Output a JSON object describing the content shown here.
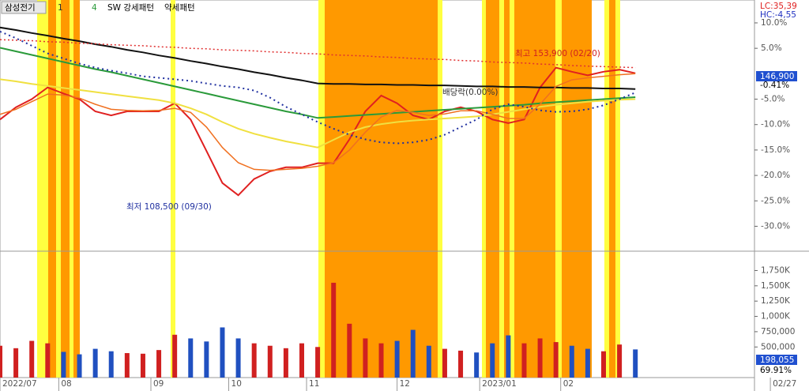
{
  "chart_data": {
    "type": "line",
    "header": {
      "name": "삼성전기",
      "first": "1",
      "second": "4",
      "pattern_up": "SW 강세패턴",
      "pattern_down": "약세패턴"
    },
    "status": {
      "lc": "LC:35,39",
      "hc": "HC:-4,55",
      "price": "146,900",
      "change": "-0.41%",
      "volume": "198,055",
      "volume_ratio": "69.91%"
    },
    "annotations": {
      "high": "최고 153,900 (02/20)",
      "low": "최저 108,500 (09/30)",
      "dividend": "배당락(0.00%)"
    },
    "xlim": [
      0,
      47.5
    ],
    "xticks": [
      {
        "value": 0,
        "label": "2022/07"
      },
      {
        "value": 3.7,
        "label": "08"
      },
      {
        "value": 9.5,
        "label": "09"
      },
      {
        "value": 14.4,
        "label": "10"
      },
      {
        "value": 19.3,
        "label": "11"
      },
      {
        "value": 25,
        "label": "12"
      },
      {
        "value": 30.2,
        "label": "2023/01"
      },
      {
        "value": 35.3,
        "label": "02"
      },
      {
        "value": 48.5,
        "label": "02/27"
      }
    ],
    "ylim": [
      -34.9,
      14.5
    ],
    "yticks": [
      {
        "value": 10,
        "label": "10.0%"
      },
      {
        "value": 5,
        "label": "5.0%"
      },
      {
        "value": -5,
        "label": "-5.0%"
      },
      {
        "value": -10,
        "label": "-10.0%"
      },
      {
        "value": -15,
        "label": "-15.0%"
      },
      {
        "value": -20,
        "label": "-20.0%"
      },
      {
        "value": -25,
        "label": "-25.0%"
      },
      {
        "value": -30,
        "label": "-30.0%"
      }
    ],
    "series": [
      {
        "color": "#e02020",
        "width": 2,
        "values": [
          -9.0,
          -6.6,
          -5.0,
          -2.7,
          -3.9,
          -5.0,
          -7.4,
          -8.2,
          -7.4,
          -7.4,
          -7.4,
          -5.8,
          -9.0,
          -15.2,
          -21.5,
          -23.9,
          -20.7,
          -19.2,
          -18.4,
          -18.4,
          -17.6,
          -17.6,
          -12.9,
          -7.4,
          -4.3,
          -5.8,
          -8.2,
          -9.0,
          -7.4,
          -6.6,
          -7.4,
          -9.0,
          -9.7,
          -9.0,
          -2.7,
          1.2,
          0.4,
          -0.3,
          0.4,
          0.8,
          0.1
        ]
      },
      {
        "color": "#111111",
        "width": 2,
        "values": [
          9.1,
          8.6,
          8.0,
          7.5,
          6.9,
          6.4,
          5.8,
          5.3,
          4.7,
          4.2,
          3.6,
          3.1,
          2.5,
          2.0,
          1.4,
          0.9,
          0.3,
          -0.2,
          -0.8,
          -1.3,
          -1.9,
          -2.0,
          -2.0,
          -2.1,
          -2.1,
          -2.2,
          -2.2,
          -2.3,
          -2.3,
          -2.4,
          -2.5,
          -2.5,
          -2.6,
          -2.6,
          -2.7,
          -2.7,
          -2.8,
          -2.8,
          -2.9,
          -2.9,
          -3.0
        ]
      },
      {
        "color": "#2a9a3a",
        "width": 2,
        "values": [
          5.1,
          4.4,
          3.7,
          3.0,
          2.3,
          1.6,
          0.9,
          0.3,
          -0.4,
          -1.1,
          -1.8,
          -2.5,
          -3.2,
          -3.9,
          -4.6,
          -5.3,
          -6.0,
          -6.7,
          -7.4,
          -8.0,
          -8.7,
          -8.5,
          -8.3,
          -8.1,
          -7.9,
          -7.7,
          -7.5,
          -7.3,
          -7.1,
          -6.9,
          -6.7,
          -6.5,
          -6.3,
          -6.1,
          -5.8,
          -5.6,
          -5.4,
          -5.2,
          -5.0,
          -4.8,
          -4.6
        ]
      },
      {
        "color": "#f0e040",
        "width": 2,
        "values": [
          -1.1,
          -1.5,
          -2.0,
          -2.4,
          -2.8,
          -3.2,
          -3.6,
          -4.0,
          -4.4,
          -4.8,
          -5.2,
          -5.8,
          -6.8,
          -8.0,
          -9.5,
          -10.8,
          -11.8,
          -12.6,
          -13.3,
          -13.9,
          -14.5,
          -13.0,
          -11.5,
          -10.5,
          -9.9,
          -9.5,
          -9.2,
          -9.0,
          -8.8,
          -8.6,
          -8.4,
          -8.0,
          -7.5,
          -7.0,
          -6.5,
          -6.1,
          -5.8,
          -5.5,
          -5.3,
          -5.1,
          -5.0
        ]
      },
      {
        "color": "#f07020",
        "width": 1.5,
        "values": [
          -8.0,
          -7.0,
          -5.5,
          -4.0,
          -4.2,
          -4.8,
          -6.0,
          -7.0,
          -7.2,
          -7.3,
          -7.2,
          -6.8,
          -7.6,
          -10.5,
          -14.5,
          -17.5,
          -18.8,
          -19.0,
          -18.8,
          -18.6,
          -18.2,
          -17.5,
          -15.0,
          -11.5,
          -8.5,
          -7.2,
          -7.6,
          -8.2,
          -7.9,
          -7.3,
          -7.3,
          -8.0,
          -8.8,
          -8.8,
          -6.0,
          -2.5,
          -1.2,
          -0.8,
          -0.5,
          -0.2,
          0.0
        ]
      },
      {
        "color": "#e03030",
        "width": 1.5,
        "dash": "2 3",
        "values": [
          6.7,
          6.6,
          6.5,
          6.3,
          6.2,
          6.0,
          5.9,
          5.7,
          5.6,
          5.5,
          5.3,
          5.2,
          5.0,
          4.9,
          4.7,
          4.6,
          4.5,
          4.3,
          4.2,
          4.0,
          3.9,
          3.7,
          3.6,
          3.5,
          3.3,
          3.2,
          3.0,
          2.9,
          2.8,
          2.6,
          2.5,
          2.3,
          2.2,
          2.1,
          1.9,
          1.8,
          1.6,
          1.5,
          1.4,
          1.3,
          1.2
        ]
      },
      {
        "color": "#2030a0",
        "width": 2,
        "dash": "2 4",
        "values": [
          8.3,
          7.0,
          5.5,
          4.0,
          3.0,
          2.0,
          1.2,
          0.6,
          0.1,
          -0.5,
          -0.8,
          -1.1,
          -1.4,
          -1.9,
          -2.4,
          -2.7,
          -3.3,
          -4.7,
          -6.5,
          -8.0,
          -9.5,
          -10.8,
          -12.0,
          -12.9,
          -13.5,
          -13.7,
          -13.5,
          -13.0,
          -12.0,
          -10.5,
          -9.0,
          -7.0,
          -6.0,
          -6.5,
          -7.2,
          -7.5,
          -7.4,
          -7.0,
          -6.2,
          -5.0,
          -3.7
        ]
      }
    ],
    "volume": {
      "ylim": [
        0,
        2040000
      ],
      "yticks": [
        {
          "value": 1750000,
          "label": "1,750K"
        },
        {
          "value": 1500000,
          "label": "1,500K"
        },
        {
          "value": 1250000,
          "label": "1,250K"
        },
        {
          "value": 1000000,
          "label": "1,000K"
        },
        {
          "value": 750000,
          "label": "750,000"
        },
        {
          "value": 500000,
          "label": "500,000"
        }
      ],
      "values": [
        520000,
        480000,
        600000,
        560000,
        420000,
        380000,
        470000,
        430000,
        400000,
        390000,
        450000,
        700000,
        640000,
        590000,
        820000,
        640000,
        560000,
        520000,
        480000,
        560000,
        500000,
        1550000,
        880000,
        640000,
        560000,
        600000,
        780000,
        520000,
        470000,
        440000,
        410000,
        560000,
        690000,
        560000,
        640000,
        580000,
        520000,
        470000,
        430000,
        540000,
        460000
      ]
    }
  }
}
